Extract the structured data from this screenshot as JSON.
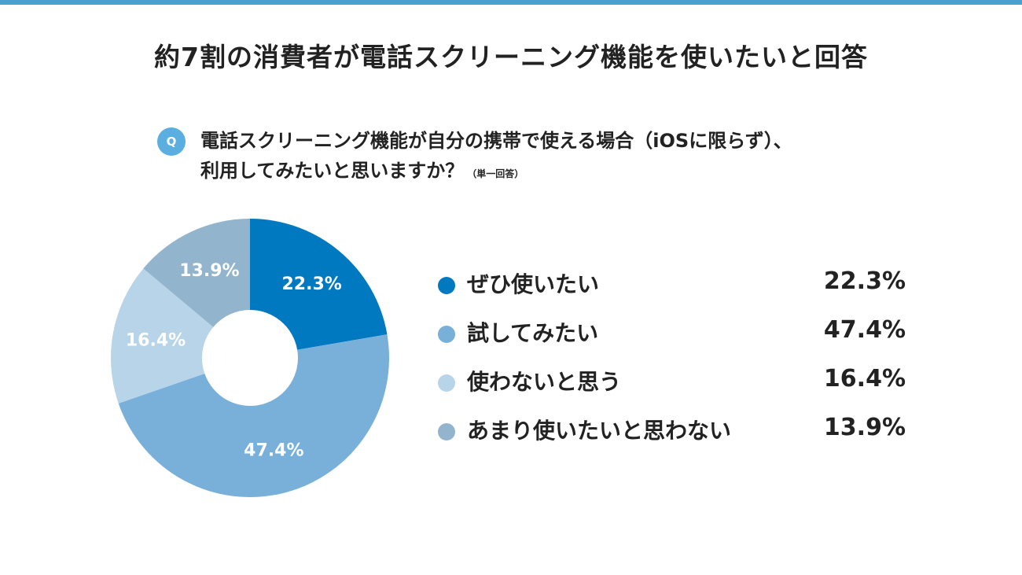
{
  "title": "約7割の消費者が電話スクリーニング機能を使いたいと回答",
  "question": {
    "badge": "Q",
    "line1": "電話スクリーニング機能が自分の携帯で使える場合（iOSに限らず）、",
    "line2": "利用してみたいと思いますか？",
    "note": "（単一回答）"
  },
  "chart_data": {
    "type": "pie",
    "donut": true,
    "categories": [
      "ぜひ使いたい",
      "試してみたい",
      "使わないと思う",
      "あまり使いたいと思わない"
    ],
    "values": [
      22.3,
      47.4,
      16.4,
      13.9
    ],
    "value_labels": [
      "22.3%",
      "47.4%",
      "16.4%",
      "13.9%"
    ],
    "colors": [
      "#0079c1",
      "#78b0d9",
      "#b8d4e8",
      "#92b4cd"
    ],
    "legend_position": "right"
  }
}
